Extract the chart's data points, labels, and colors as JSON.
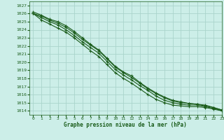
{
  "title": "Graphe pression niveau de la mer (hPa)",
  "bg_color": "#cceee8",
  "grid_color": "#aad4cc",
  "line_color": "#1a5c1a",
  "xlim": [
    -0.5,
    23
  ],
  "ylim": [
    1013.5,
    1027.5
  ],
  "xticks": [
    0,
    1,
    2,
    3,
    4,
    5,
    6,
    7,
    8,
    9,
    10,
    11,
    12,
    13,
    14,
    15,
    16,
    17,
    18,
    19,
    20,
    21,
    22,
    23
  ],
  "yticks": [
    1014,
    1015,
    1016,
    1017,
    1018,
    1019,
    1020,
    1021,
    1022,
    1023,
    1024,
    1025,
    1026,
    1027
  ],
  "series": [
    [
      1026.2,
      1025.8,
      1025.3,
      1025.0,
      1024.5,
      1023.8,
      1023.0,
      1022.2,
      1021.5,
      1020.5,
      1019.5,
      1018.8,
      1018.3,
      1017.5,
      1016.8,
      1016.2,
      1015.7,
      1015.3,
      1015.1,
      1014.9,
      1014.8,
      1014.7,
      1014.4,
      1014.1
    ],
    [
      1026.0,
      1025.7,
      1025.2,
      1024.8,
      1024.3,
      1023.6,
      1022.8,
      1022.1,
      1021.4,
      1020.4,
      1019.4,
      1018.7,
      1018.1,
      1017.4,
      1016.7,
      1016.1,
      1015.6,
      1015.2,
      1015.0,
      1014.9,
      1014.8,
      1014.6,
      1014.4,
      1014.1
    ],
    [
      1026.0,
      1025.5,
      1025.0,
      1024.6,
      1024.0,
      1023.3,
      1022.5,
      1021.8,
      1021.1,
      1020.1,
      1019.1,
      1018.4,
      1017.8,
      1017.1,
      1016.5,
      1015.8,
      1015.3,
      1015.0,
      1014.8,
      1014.7,
      1014.7,
      1014.5,
      1014.3,
      1014.0
    ],
    [
      1026.0,
      1025.2,
      1024.7,
      1024.2,
      1023.7,
      1023.0,
      1022.2,
      1021.4,
      1020.7,
      1019.7,
      1018.7,
      1018.0,
      1017.4,
      1016.7,
      1016.0,
      1015.4,
      1015.0,
      1014.7,
      1014.6,
      1014.5,
      1014.5,
      1014.4,
      1014.2,
      1014.0
    ]
  ]
}
